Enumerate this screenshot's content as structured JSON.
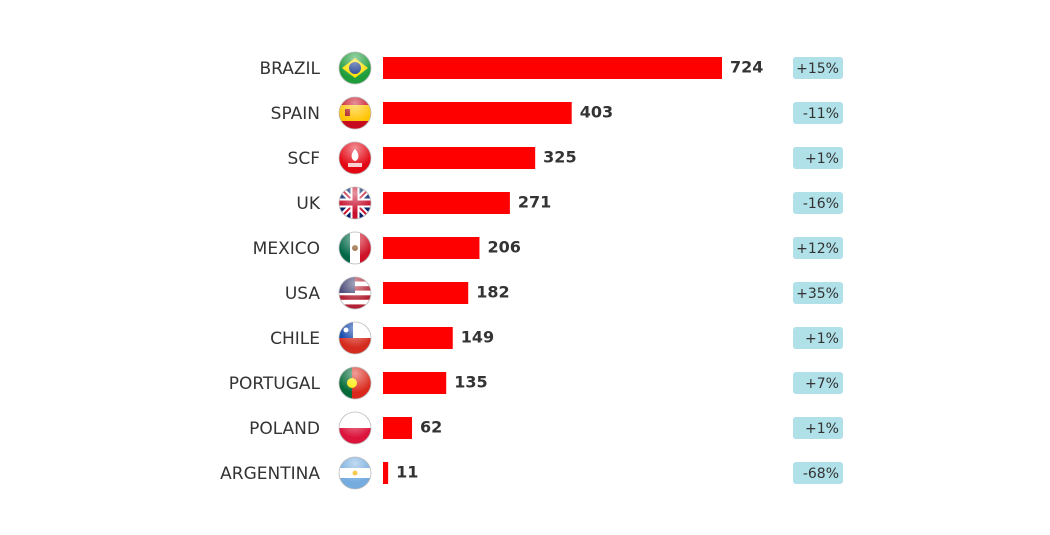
{
  "chart_data": {
    "type": "bar",
    "categories": [
      "BRAZIL",
      "SPAIN",
      "SCF",
      "UK",
      "MEXICO",
      "USA",
      "CHILE",
      "PORTUGAL",
      "POLAND",
      "ARGENTINA"
    ],
    "values": [
      724,
      403,
      325,
      271,
      206,
      182,
      149,
      135,
      62,
      11
    ],
    "color": "#ff0000",
    "change_labels": [
      "+15%",
      "-11%",
      "+1%",
      "-16%",
      "+12%",
      "+35%",
      "+1%",
      "+7%",
      "+1%",
      "-68%"
    ]
  }
}
